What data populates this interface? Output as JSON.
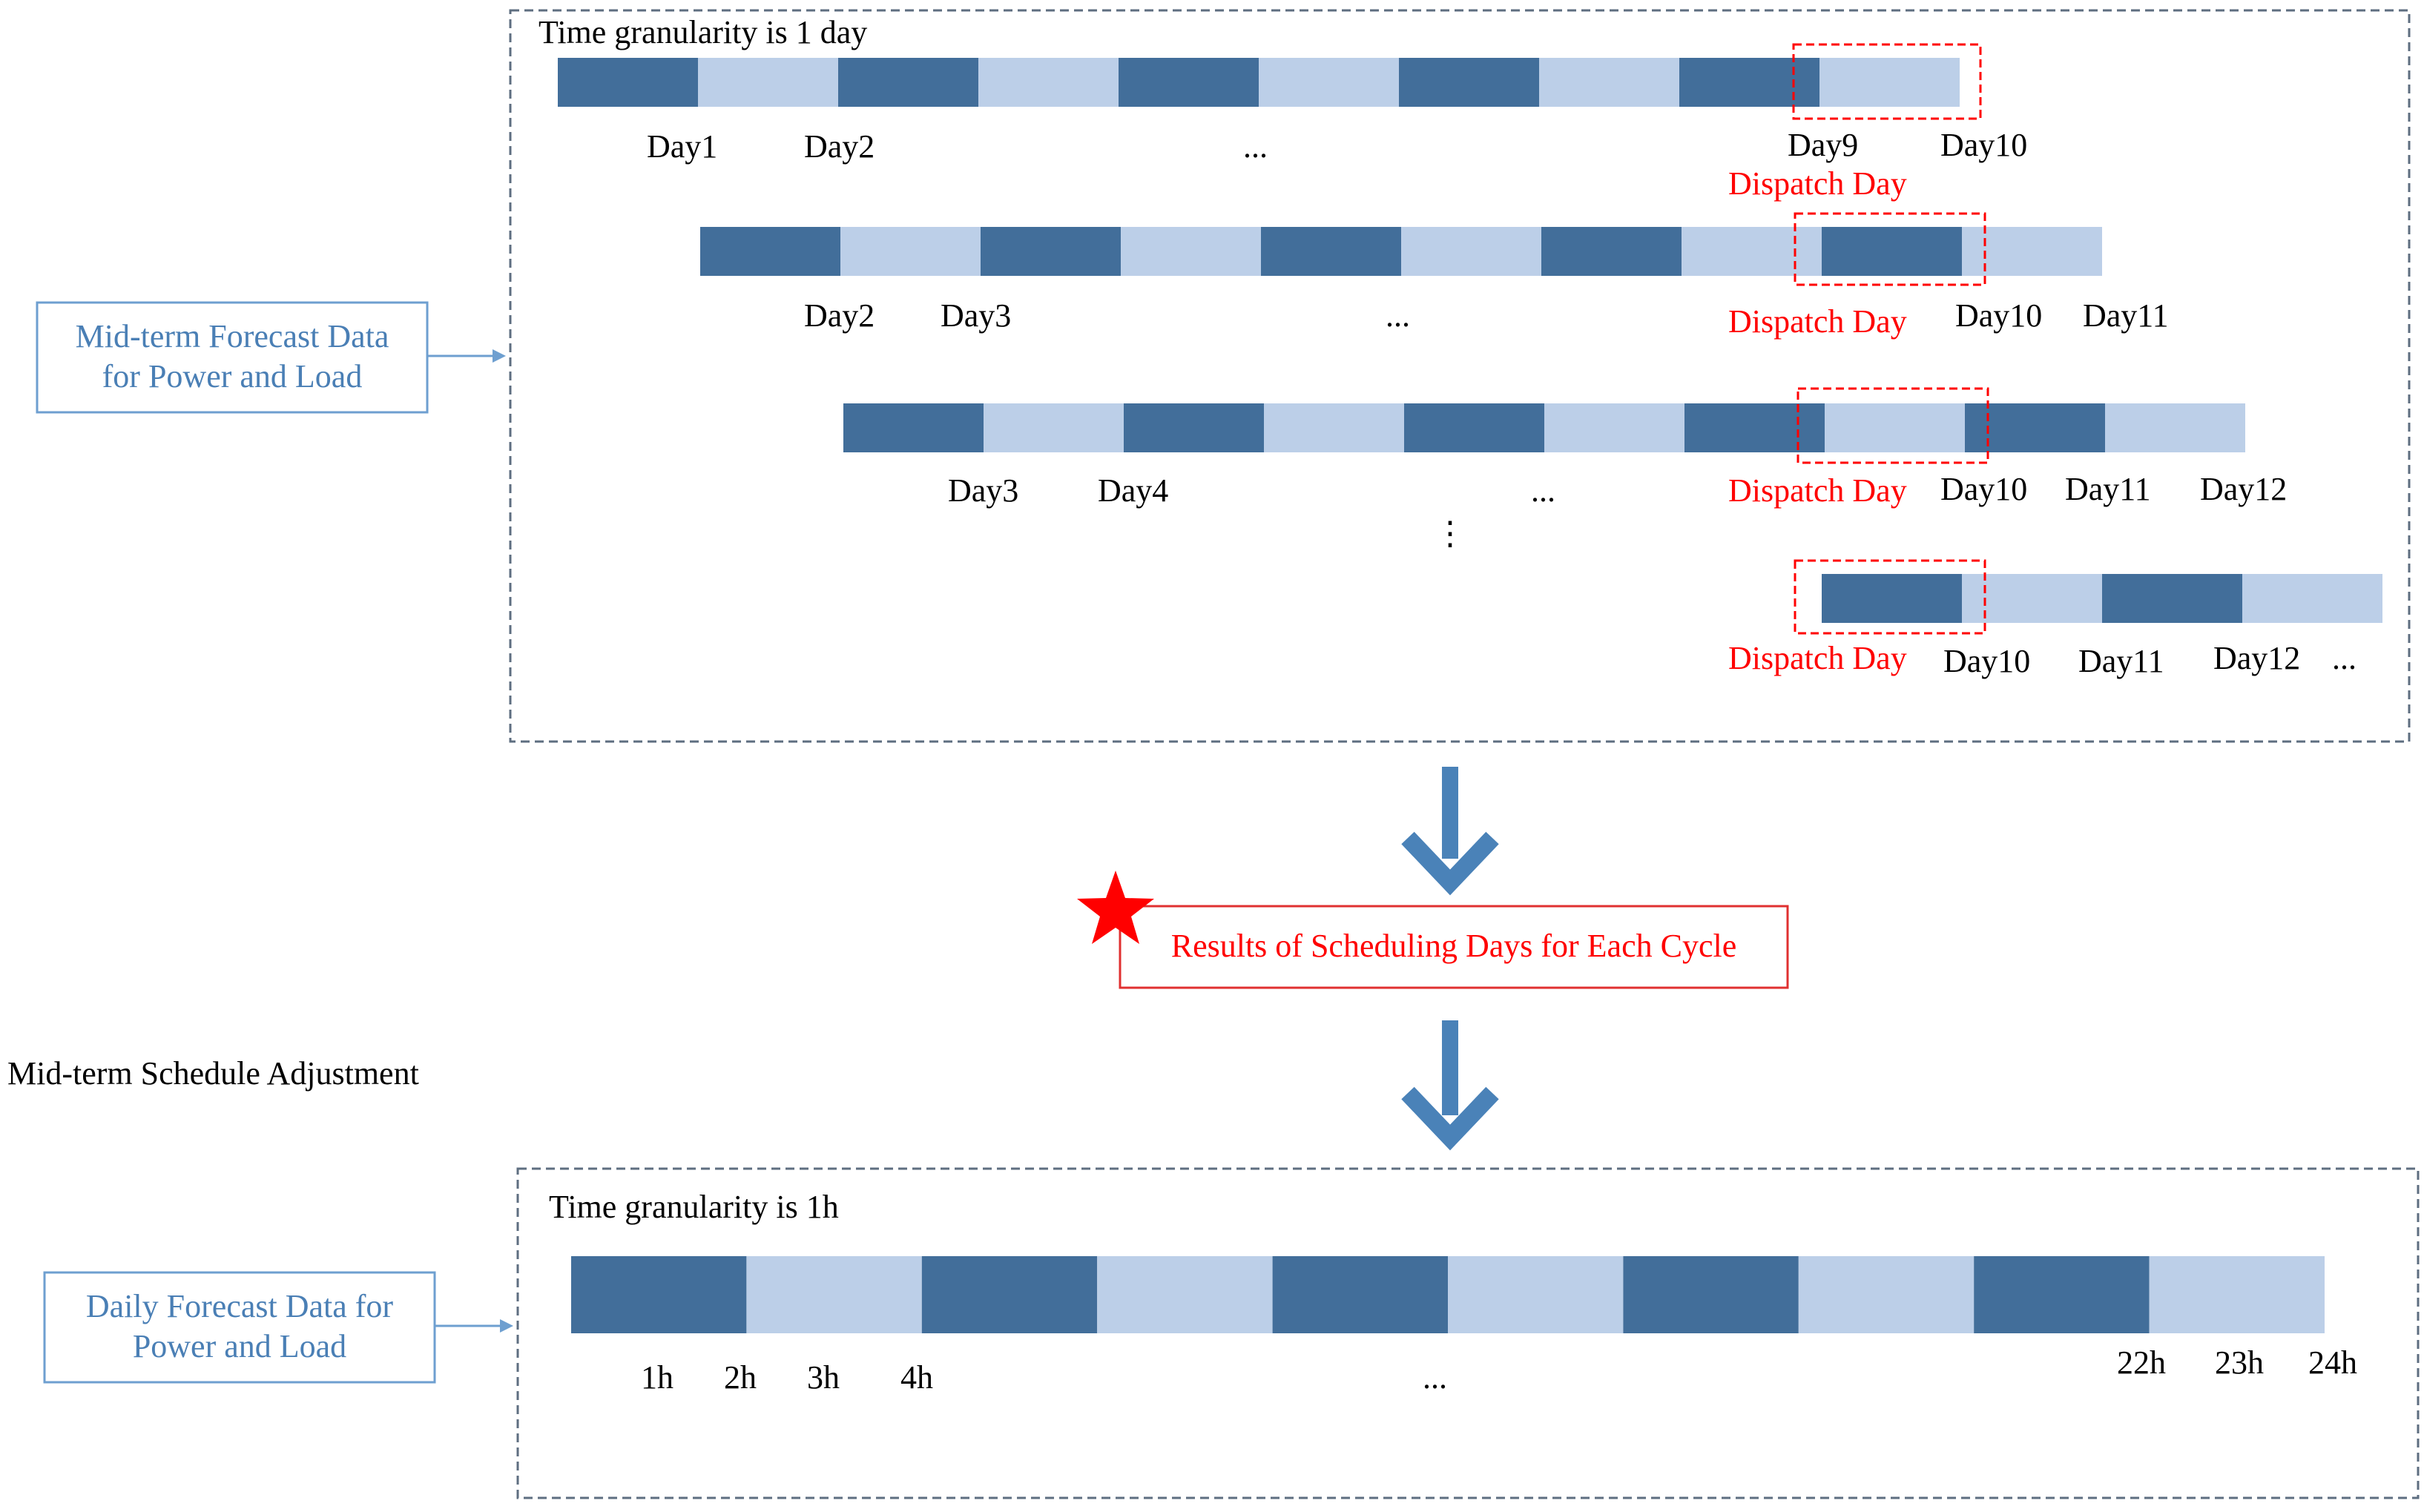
{
  "colors": {
    "dark_segment": "#426e9a",
    "light_segment": "#bccfe8",
    "box_border": "#5e6e80",
    "input_border": "#6e9fd0",
    "input_text": "#4a7fb5",
    "highlight": "#ff0000",
    "arrow": "#4a82b8"
  },
  "midterm": {
    "granularity_label": "Time granularity is 1 day",
    "input_label_line1": "Mid-term Forecast Data",
    "input_label_line2": "for Power and Load",
    "dispatch_label": "Dispatch Day",
    "vertical_ellipsis": "⋮",
    "cycles": [
      {
        "day_labels": [
          "Day1",
          "Day2",
          "...",
          "Day9",
          "Day10"
        ]
      },
      {
        "day_labels": [
          "Day2",
          "Day3",
          "...",
          "Day10",
          "Day11"
        ]
      },
      {
        "day_labels": [
          "Day3",
          "Day4",
          "...",
          "Day10",
          "Day11",
          "Day12"
        ]
      },
      {
        "day_labels": [
          "Day10",
          "Day11",
          "Day12",
          "..."
        ]
      }
    ]
  },
  "result": {
    "icon": "star-icon",
    "label": "Results of Scheduling Days for Each Cycle"
  },
  "stage_label": "Mid-term Schedule Adjustment",
  "daily": {
    "granularity_label": "Time granularity is 1h",
    "input_label_line1": "Daily Forecast Data for",
    "input_label_line2": "Power and Load",
    "hour_labels": [
      "1h",
      "2h",
      "3h",
      "4h",
      "...",
      "22h",
      "23h",
      "24h"
    ]
  }
}
